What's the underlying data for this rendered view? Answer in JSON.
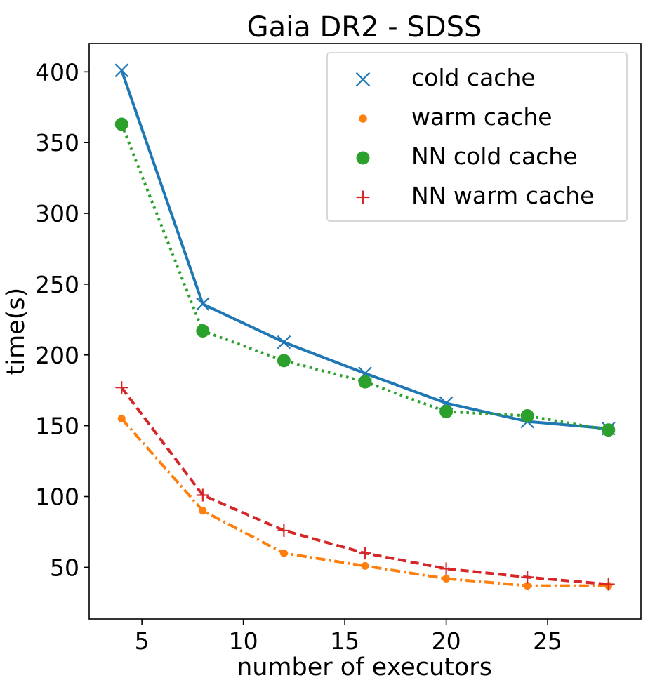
{
  "chart_data": {
    "type": "line",
    "title": "Gaia DR2 - SDSS",
    "xlabel": "number of executors",
    "ylabel": "time(s)",
    "xlim": [
      2.4,
      29.6
    ],
    "ylim": [
      13.5,
      420
    ],
    "xticks": [
      5,
      10,
      15,
      20,
      25
    ],
    "yticks": [
      50,
      100,
      150,
      200,
      250,
      300,
      350,
      400
    ],
    "xtick_labels": [
      "5",
      "10",
      "15",
      "20",
      "25"
    ],
    "ytick_labels": [
      "50",
      "100",
      "150",
      "200",
      "250",
      "300",
      "350",
      "400"
    ],
    "grid": false,
    "legend_position": "top-right",
    "x": [
      4,
      8,
      12,
      16,
      20,
      24,
      28
    ],
    "series": [
      {
        "name": "cold cache",
        "values": [
          401,
          236,
          209,
          187,
          166,
          153,
          148
        ],
        "color": "#1f77b4",
        "marker": "x",
        "line": "solid"
      },
      {
        "name": "warm cache",
        "values": [
          155,
          90,
          60,
          51,
          42,
          37,
          37
        ],
        "color": "#ff7f0e",
        "marker": "small-dot",
        "line": "dashdot"
      },
      {
        "name": "NN cold cache",
        "values": [
          363,
          217,
          196,
          181,
          160,
          157,
          147
        ],
        "color": "#2ca02c",
        "marker": "large-dot",
        "line": "dotted"
      },
      {
        "name": "NN warm cache",
        "values": [
          177,
          101,
          76,
          60,
          49,
          43,
          38
        ],
        "color": "#d62728",
        "marker": "plus",
        "line": "dashed"
      }
    ]
  }
}
